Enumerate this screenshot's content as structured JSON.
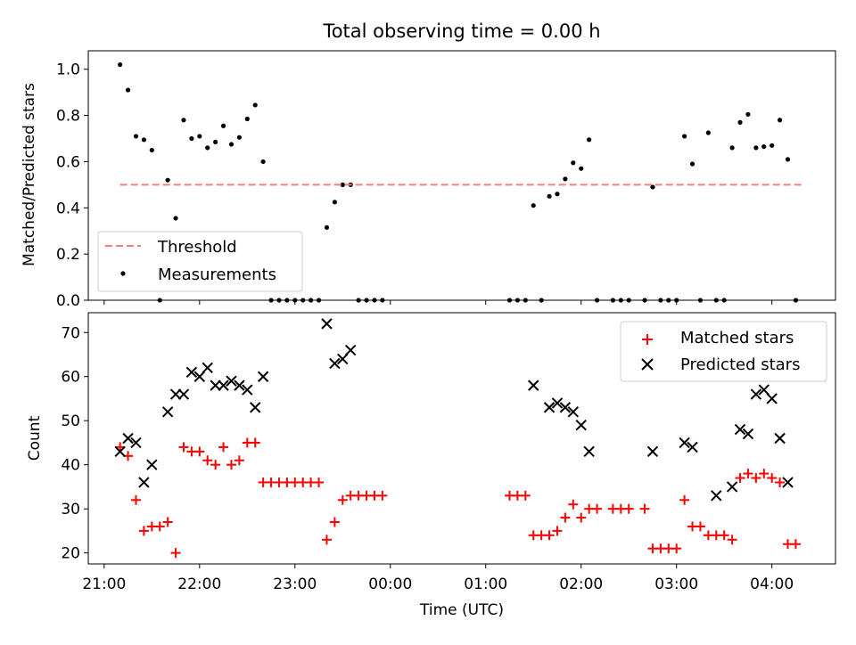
{
  "chart_data": [
    {
      "type": "scatter",
      "title": "Total observing time = 0.00 h",
      "xlabel": "",
      "ylabel": "Matched/Predicted stars",
      "ylim": [
        0,
        1.08
      ],
      "yticks": [
        "0.0",
        "0.2",
        "0.4",
        "0.6",
        "0.8",
        "1.0"
      ],
      "grid": false,
      "legend": {
        "placement": "lower-left",
        "entries": [
          "Threshold",
          "Measurements"
        ]
      },
      "threshold": {
        "name": "Threshold",
        "y": 0.5,
        "x_start": "21:10",
        "x_end": "04:20",
        "color": "#f08080",
        "style": "dashed"
      },
      "series": [
        {
          "name": "Measurements",
          "color": "#000000",
          "points": [
            [
              "21:10",
              1.02
            ],
            [
              "21:15",
              0.91
            ],
            [
              "21:20",
              0.71
            ],
            [
              "21:25",
              0.695
            ],
            [
              "21:30",
              0.65
            ],
            [
              "21:35",
              0.0
            ],
            [
              "21:40",
              0.52
            ],
            [
              "21:45",
              0.355
            ],
            [
              "21:50",
              0.78
            ],
            [
              "21:55",
              0.7
            ],
            [
              "22:00",
              0.71
            ],
            [
              "22:05",
              0.66
            ],
            [
              "22:10",
              0.685
            ],
            [
              "22:15",
              0.755
            ],
            [
              "22:20",
              0.675
            ],
            [
              "22:25",
              0.705
            ],
            [
              "22:30",
              0.785
            ],
            [
              "22:35",
              0.845
            ],
            [
              "22:40",
              0.6
            ],
            [
              "22:45",
              0.0
            ],
            [
              "22:50",
              0.0
            ],
            [
              "22:55",
              0.0
            ],
            [
              "23:00",
              0.0
            ],
            [
              "23:05",
              0.0
            ],
            [
              "23:10",
              0.0
            ],
            [
              "23:15",
              0.0
            ],
            [
              "23:20",
              0.315
            ],
            [
              "23:25",
              0.425
            ],
            [
              "23:30",
              0.5
            ],
            [
              "23:35",
              0.5
            ],
            [
              "23:40",
              0.0
            ],
            [
              "23:45",
              0.0
            ],
            [
              "23:50",
              0.0
            ],
            [
              "23:55",
              0.0
            ],
            [
              "01:15",
              0.0
            ],
            [
              "01:20",
              0.0
            ],
            [
              "01:25",
              0.0
            ],
            [
              "01:30",
              0.41
            ],
            [
              "01:35",
              0.0
            ],
            [
              "01:40",
              0.45
            ],
            [
              "01:45",
              0.46
            ],
            [
              "01:50",
              0.525
            ],
            [
              "01:55",
              0.595
            ],
            [
              "02:00",
              0.57
            ],
            [
              "02:05",
              0.695
            ],
            [
              "02:10",
              0.0
            ],
            [
              "02:20",
              0.0
            ],
            [
              "02:25",
              0.0
            ],
            [
              "02:30",
              0.0
            ],
            [
              "02:40",
              0.0
            ],
            [
              "02:45",
              0.49
            ],
            [
              "02:50",
              0.0
            ],
            [
              "02:55",
              0.0
            ],
            [
              "03:00",
              0.0
            ],
            [
              "03:05",
              0.71
            ],
            [
              "03:10",
              0.59
            ],
            [
              "03:15",
              0.0
            ],
            [
              "03:20",
              0.725
            ],
            [
              "03:25",
              0.0
            ],
            [
              "03:30",
              0.0
            ],
            [
              "03:35",
              0.66
            ],
            [
              "03:40",
              0.77
            ],
            [
              "03:45",
              0.805
            ],
            [
              "03:50",
              0.66
            ],
            [
              "03:55",
              0.665
            ],
            [
              "04:00",
              0.67
            ],
            [
              "04:05",
              0.78
            ],
            [
              "04:10",
              0.61
            ],
            [
              "04:15",
              0.0
            ]
          ]
        }
      ]
    },
    {
      "type": "scatter",
      "title": "",
      "xlabel": "Time (UTC)",
      "ylabel": "Count",
      "ylim": [
        17.5,
        74.5
      ],
      "yticks": [
        "20",
        "30",
        "40",
        "50",
        "60",
        "70"
      ],
      "xticks": [
        "21:00",
        "22:00",
        "23:00",
        "00:00",
        "01:00",
        "02:00",
        "03:00",
        "04:00"
      ],
      "grid": false,
      "legend": {
        "placement": "top-right",
        "entries": [
          "Matched stars",
          "Predicted stars"
        ]
      },
      "series": [
        {
          "name": "Matched stars",
          "marker": "plus",
          "color": "#ff0000",
          "points": [
            [
              "21:10",
              44
            ],
            [
              "21:15",
              42
            ],
            [
              "21:20",
              32
            ],
            [
              "21:25",
              25
            ],
            [
              "21:30",
              26
            ],
            [
              "21:35",
              26
            ],
            [
              "21:40",
              27
            ],
            [
              "21:45",
              20
            ],
            [
              "21:50",
              44
            ],
            [
              "21:55",
              43
            ],
            [
              "22:00",
              43
            ],
            [
              "22:05",
              41
            ],
            [
              "22:10",
              40
            ],
            [
              "22:15",
              44
            ],
            [
              "22:20",
              40
            ],
            [
              "22:25",
              41
            ],
            [
              "22:30",
              45
            ],
            [
              "22:35",
              45
            ],
            [
              "22:40",
              36
            ],
            [
              "22:45",
              36
            ],
            [
              "22:50",
              36
            ],
            [
              "22:55",
              36
            ],
            [
              "23:00",
              36
            ],
            [
              "23:05",
              36
            ],
            [
              "23:10",
              36
            ],
            [
              "23:15",
              36
            ],
            [
              "23:20",
              23
            ],
            [
              "23:25",
              27
            ],
            [
              "23:30",
              32
            ],
            [
              "23:35",
              33
            ],
            [
              "23:40",
              33
            ],
            [
              "23:45",
              33
            ],
            [
              "23:50",
              33
            ],
            [
              "23:55",
              33
            ],
            [
              "01:15",
              33
            ],
            [
              "01:20",
              33
            ],
            [
              "01:25",
              33
            ],
            [
              "01:30",
              24
            ],
            [
              "01:35",
              24
            ],
            [
              "01:40",
              24
            ],
            [
              "01:45",
              25
            ],
            [
              "01:50",
              28
            ],
            [
              "01:55",
              31
            ],
            [
              "02:00",
              28
            ],
            [
              "02:05",
              30
            ],
            [
              "02:10",
              30
            ],
            [
              "02:20",
              30
            ],
            [
              "02:25",
              30
            ],
            [
              "02:30",
              30
            ],
            [
              "02:40",
              30
            ],
            [
              "02:45",
              21
            ],
            [
              "02:50",
              21
            ],
            [
              "02:55",
              21
            ],
            [
              "03:00",
              21
            ],
            [
              "03:05",
              32
            ],
            [
              "03:10",
              26
            ],
            [
              "03:15",
              26
            ],
            [
              "03:20",
              24
            ],
            [
              "03:25",
              24
            ],
            [
              "03:30",
              24
            ],
            [
              "03:35",
              23
            ],
            [
              "03:40",
              37
            ],
            [
              "03:45",
              38
            ],
            [
              "03:50",
              37
            ],
            [
              "03:55",
              38
            ],
            [
              "04:00",
              37
            ],
            [
              "04:05",
              36
            ],
            [
              "04:10",
              22
            ],
            [
              "04:15",
              22
            ]
          ]
        },
        {
          "name": "Predicted stars",
          "marker": "x",
          "color": "#000000",
          "points": [
            [
              "21:10",
              43
            ],
            [
              "21:15",
              46
            ],
            [
              "21:20",
              45
            ],
            [
              "21:25",
              36
            ],
            [
              "21:30",
              40
            ],
            [
              "21:40",
              52
            ],
            [
              "21:45",
              56
            ],
            [
              "21:50",
              56
            ],
            [
              "21:55",
              61
            ],
            [
              "22:00",
              60
            ],
            [
              "22:05",
              62
            ],
            [
              "22:10",
              58
            ],
            [
              "22:15",
              58
            ],
            [
              "22:20",
              59
            ],
            [
              "22:25",
              58
            ],
            [
              "22:30",
              57
            ],
            [
              "22:35",
              53
            ],
            [
              "22:40",
              60
            ],
            [
              "23:20",
              72
            ],
            [
              "23:25",
              63
            ],
            [
              "23:30",
              64
            ],
            [
              "23:35",
              66
            ],
            [
              "01:30",
              58
            ],
            [
              "01:40",
              53
            ],
            [
              "01:45",
              54
            ],
            [
              "01:50",
              53
            ],
            [
              "01:55",
              52
            ],
            [
              "02:00",
              49
            ],
            [
              "02:05",
              43
            ],
            [
              "02:45",
              43
            ],
            [
              "03:05",
              45
            ],
            [
              "03:10",
              44
            ],
            [
              "03:25",
              33
            ],
            [
              "03:35",
              35
            ],
            [
              "03:40",
              48
            ],
            [
              "03:45",
              47
            ],
            [
              "03:50",
              56
            ],
            [
              "03:55",
              57
            ],
            [
              "04:00",
              55
            ],
            [
              "04:05",
              46
            ],
            [
              "04:10",
              36
            ]
          ]
        }
      ]
    }
  ]
}
